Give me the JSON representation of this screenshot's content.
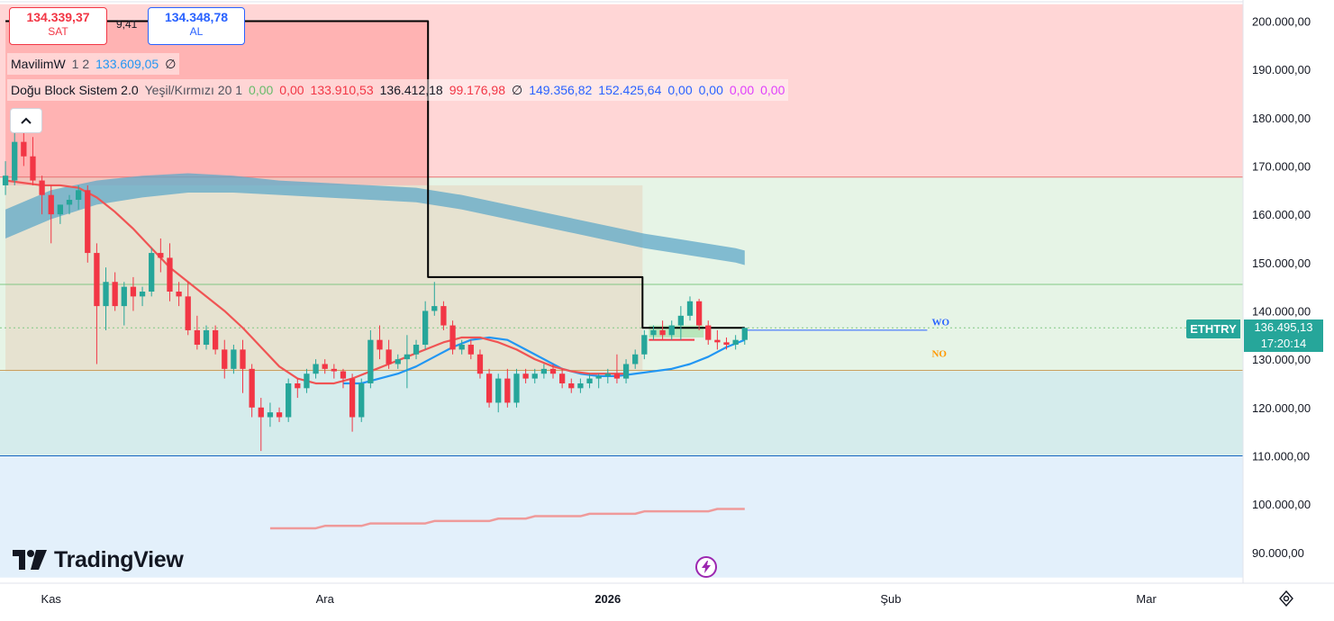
{
  "header": {
    "sell_price": "134.339,37",
    "sell_label": "SAT",
    "spread": "9,41",
    "buy_price": "134.348,78",
    "buy_label": "AL"
  },
  "legend": {
    "row1": {
      "name": "MavilimW",
      "params": "1 2",
      "value": "133.609,05",
      "null_mark": "∅"
    },
    "row2": {
      "name": "Doğu Block Sistem 2.0",
      "params": "Yeşil/Kırmızı 20 1",
      "values": [
        {
          "text": "0,00",
          "color": "#66bb6a"
        },
        {
          "text": "0,00",
          "color": "#f23645"
        },
        {
          "text": "133.910,53",
          "color": "#f23645"
        },
        {
          "text": "136.412,18",
          "color": "#131722"
        },
        {
          "text": "99.176,98",
          "color": "#f23645"
        },
        {
          "text": "∅",
          "color": "#131722"
        },
        {
          "text": "149.356,82",
          "color": "#2962ff"
        },
        {
          "text": "152.425,64",
          "color": "#2962ff"
        },
        {
          "text": "0,00",
          "color": "#2962ff"
        },
        {
          "text": "0,00",
          "color": "#2962ff"
        },
        {
          "text": "0,00",
          "color": "#e040fb"
        },
        {
          "text": "0,00",
          "color": "#e040fb"
        }
      ]
    }
  },
  "branding": {
    "logo_text": "TradingView"
  },
  "symbol": {
    "ticker": "ETHTRY",
    "last_price": "136.495,13",
    "countdown": "17:20:14"
  },
  "colors": {
    "up": "#26a69a",
    "down": "#f23645",
    "red_ma": "#f05454",
    "blue_ma": "#2196f3",
    "cloud": "#5fa8c8",
    "zone_red": "#ffd6d6",
    "zone_green": "#e6f4e6",
    "zone_teal": "#d5ecec",
    "zone_blue": "#e3f0fb"
  },
  "chart_data": {
    "type": "candlestick",
    "title": "",
    "y_axis": {
      "ticks": [
        "200.000,00",
        "190.000,00",
        "180.000,00",
        "170.000,00",
        "160.000,00",
        "150.000,00",
        "140.000,00",
        "130.000,00",
        "120.000,00",
        "110.000,00",
        "100.000,00",
        "90.000,00"
      ],
      "tick_values": [
        200000,
        190000,
        180000,
        170000,
        160000,
        150000,
        140000,
        130000,
        120000,
        110000,
        100000,
        90000
      ],
      "range": [
        84000,
        204000
      ]
    },
    "x_axis": {
      "labels": [
        {
          "text": "Kas",
          "day": 0,
          "bold": false
        },
        {
          "text": "Ara",
          "day": 30,
          "bold": false
        },
        {
          "text": "2026",
          "day": 61,
          "bold": true
        },
        {
          "text": "Şub",
          "day": 92,
          "bold": false
        },
        {
          "text": "Mar",
          "day": 120,
          "bold": false
        }
      ],
      "range_days": [
        -5.6,
        130.6
      ]
    },
    "zones": [
      {
        "name": "red",
        "from": 167700,
        "to": 203500
      },
      {
        "name": "green",
        "from": 127500,
        "to": 167700
      },
      {
        "name": "teal",
        "from": 110000,
        "to": 127500
      },
      {
        "name": "blue",
        "from": 84800,
        "to": 110000
      }
    ],
    "horizontal_lines": [
      {
        "value": 167700,
        "color": "#e57373"
      },
      {
        "value": 145500,
        "color": "#81c784"
      },
      {
        "value": 136500,
        "color": "#81c784",
        "dotted": true
      },
      {
        "value": 127700,
        "color": "#c8a060"
      },
      {
        "value": 110000,
        "color": "#1565c0"
      }
    ],
    "annotations": [
      {
        "text": "WO",
        "day": 96.5,
        "value": 137000,
        "color": "#2962ff"
      },
      {
        "text": "NO",
        "day": 96.5,
        "value": 130500,
        "color": "#ff9800"
      }
    ],
    "candles": [
      {
        "d": -5,
        "o": 166000,
        "h": 171000,
        "l": 164000,
        "c": 168000
      },
      {
        "d": -4,
        "o": 167000,
        "h": 177000,
        "l": 166000,
        "c": 175000
      },
      {
        "d": -3,
        "o": 175000,
        "h": 177000,
        "l": 170000,
        "c": 172000
      },
      {
        "d": -2,
        "o": 172000,
        "h": 176000,
        "l": 166000,
        "c": 167000
      },
      {
        "d": -1,
        "o": 167000,
        "h": 168000,
        "l": 160000,
        "c": 164000
      },
      {
        "d": 0,
        "o": 164000,
        "h": 166000,
        "l": 154000,
        "c": 160000
      },
      {
        "d": 1,
        "o": 160000,
        "h": 162000,
        "l": 158000,
        "c": 162000
      },
      {
        "d": 2,
        "o": 162000,
        "h": 164000,
        "l": 160000,
        "c": 163000
      },
      {
        "d": 3,
        "o": 163000,
        "h": 166000,
        "l": 161000,
        "c": 165000
      },
      {
        "d": 4,
        "o": 165000,
        "h": 166000,
        "l": 150000,
        "c": 152000
      },
      {
        "d": 5,
        "o": 152000,
        "h": 154000,
        "l": 129000,
        "c": 141000
      },
      {
        "d": 6,
        "o": 141000,
        "h": 149000,
        "l": 136000,
        "c": 146000
      },
      {
        "d": 7,
        "o": 146000,
        "h": 148000,
        "l": 140000,
        "c": 141000
      },
      {
        "d": 8,
        "o": 141000,
        "h": 146000,
        "l": 137000,
        "c": 145000
      },
      {
        "d": 9,
        "o": 145000,
        "h": 147000,
        "l": 140000,
        "c": 143000
      },
      {
        "d": 10,
        "o": 143000,
        "h": 145000,
        "l": 141000,
        "c": 144000
      },
      {
        "d": 11,
        "o": 144000,
        "h": 153000,
        "l": 143000,
        "c": 152000
      },
      {
        "d": 12,
        "o": 152000,
        "h": 155000,
        "l": 148000,
        "c": 151000
      },
      {
        "d": 13,
        "o": 151000,
        "h": 154000,
        "l": 142000,
        "c": 144000
      },
      {
        "d": 14,
        "o": 144000,
        "h": 146000,
        "l": 141000,
        "c": 143000
      },
      {
        "d": 15,
        "o": 143000,
        "h": 146000,
        "l": 135000,
        "c": 136000
      },
      {
        "d": 16,
        "o": 136000,
        "h": 139000,
        "l": 132000,
        "c": 133000
      },
      {
        "d": 17,
        "o": 133000,
        "h": 137000,
        "l": 132000,
        "c": 136000
      },
      {
        "d": 18,
        "o": 136000,
        "h": 137000,
        "l": 131000,
        "c": 132000
      },
      {
        "d": 19,
        "o": 132000,
        "h": 134000,
        "l": 126000,
        "c": 128000
      },
      {
        "d": 20,
        "o": 128000,
        "h": 133000,
        "l": 127000,
        "c": 132000
      },
      {
        "d": 21,
        "o": 132000,
        "h": 134000,
        "l": 123000,
        "c": 128000
      },
      {
        "d": 22,
        "o": 128000,
        "h": 129000,
        "l": 118000,
        "c": 120000
      },
      {
        "d": 23,
        "o": 120000,
        "h": 122000,
        "l": 111000,
        "c": 118000
      },
      {
        "d": 24,
        "o": 118000,
        "h": 121000,
        "l": 116000,
        "c": 119000
      },
      {
        "d": 25,
        "o": 119000,
        "h": 120000,
        "l": 117000,
        "c": 118000
      },
      {
        "d": 26,
        "o": 118000,
        "h": 126000,
        "l": 117000,
        "c": 125000
      },
      {
        "d": 27,
        "o": 125000,
        "h": 126000,
        "l": 122000,
        "c": 124000
      },
      {
        "d": 28,
        "o": 124000,
        "h": 128000,
        "l": 123000,
        "c": 127000
      },
      {
        "d": 29,
        "o": 127000,
        "h": 130000,
        "l": 126000,
        "c": 129000
      },
      {
        "d": 30,
        "o": 129000,
        "h": 130000,
        "l": 127000,
        "c": 128000
      },
      {
        "d": 31,
        "o": 128000,
        "h": 129000,
        "l": 126000,
        "c": 127500
      },
      {
        "d": 32,
        "o": 127500,
        "h": 128000,
        "l": 124000,
        "c": 126000
      },
      {
        "d": 33,
        "o": 126000,
        "h": 127000,
        "l": 115000,
        "c": 118000
      },
      {
        "d": 34,
        "o": 118000,
        "h": 126000,
        "l": 117000,
        "c": 125000
      },
      {
        "d": 35,
        "o": 125000,
        "h": 136000,
        "l": 124000,
        "c": 134000
      },
      {
        "d": 36,
        "o": 134000,
        "h": 137000,
        "l": 130000,
        "c": 132000
      },
      {
        "d": 37,
        "o": 132000,
        "h": 134000,
        "l": 128000,
        "c": 129000
      },
      {
        "d": 38,
        "o": 129000,
        "h": 131000,
        "l": 128000,
        "c": 130000
      },
      {
        "d": 39,
        "o": 130000,
        "h": 135000,
        "l": 124000,
        "c": 131000
      },
      {
        "d": 40,
        "o": 131000,
        "h": 134000,
        "l": 130000,
        "c": 133000
      },
      {
        "d": 41,
        "o": 133000,
        "h": 142000,
        "l": 132000,
        "c": 140000
      },
      {
        "d": 42,
        "o": 140000,
        "h": 146000,
        "l": 139000,
        "c": 141000
      },
      {
        "d": 43,
        "o": 141000,
        "h": 142000,
        "l": 136000,
        "c": 137000
      },
      {
        "d": 44,
        "o": 137000,
        "h": 138000,
        "l": 131000,
        "c": 132000
      },
      {
        "d": 45,
        "o": 132000,
        "h": 134000,
        "l": 131000,
        "c": 133000
      },
      {
        "d": 46,
        "o": 133000,
        "h": 134000,
        "l": 130000,
        "c": 131000
      },
      {
        "d": 47,
        "o": 131000,
        "h": 132000,
        "l": 126000,
        "c": 127000
      },
      {
        "d": 48,
        "o": 127000,
        "h": 128000,
        "l": 120000,
        "c": 121000
      },
      {
        "d": 49,
        "o": 121000,
        "h": 127000,
        "l": 119000,
        "c": 126000
      },
      {
        "d": 50,
        "o": 126000,
        "h": 128000,
        "l": 120000,
        "c": 121000
      },
      {
        "d": 51,
        "o": 121000,
        "h": 128000,
        "l": 120000,
        "c": 127000
      },
      {
        "d": 52,
        "o": 127000,
        "h": 128000,
        "l": 125000,
        "c": 126000
      },
      {
        "d": 53,
        "o": 126000,
        "h": 128000,
        "l": 125000,
        "c": 127000
      },
      {
        "d": 54,
        "o": 127000,
        "h": 129000,
        "l": 126000,
        "c": 128000
      },
      {
        "d": 55,
        "o": 128000,
        "h": 129000,
        "l": 126000,
        "c": 127000
      },
      {
        "d": 56,
        "o": 127000,
        "h": 128000,
        "l": 124000,
        "c": 125000
      },
      {
        "d": 57,
        "o": 125000,
        "h": 126000,
        "l": 123000,
        "c": 124000
      },
      {
        "d": 58,
        "o": 124000,
        "h": 126000,
        "l": 123000,
        "c": 125000
      },
      {
        "d": 59,
        "o": 125000,
        "h": 127000,
        "l": 124000,
        "c": 126000
      },
      {
        "d": 60,
        "o": 126000,
        "h": 127000,
        "l": 124000,
        "c": 126500
      },
      {
        "d": 61,
        "o": 126500,
        "h": 128000,
        "l": 125000,
        "c": 127000
      },
      {
        "d": 62,
        "o": 127000,
        "h": 131000,
        "l": 125000,
        "c": 126000
      },
      {
        "d": 63,
        "o": 126000,
        "h": 130000,
        "l": 125000,
        "c": 129000
      },
      {
        "d": 64,
        "o": 129000,
        "h": 132000,
        "l": 128000,
        "c": 131000
      },
      {
        "d": 65,
        "o": 131000,
        "h": 136000,
        "l": 130000,
        "c": 135000
      },
      {
        "d": 66,
        "o": 135000,
        "h": 137000,
        "l": 134000,
        "c": 136000
      },
      {
        "d": 67,
        "o": 136000,
        "h": 138000,
        "l": 134000,
        "c": 135000
      },
      {
        "d": 68,
        "o": 135000,
        "h": 138000,
        "l": 134000,
        "c": 137000
      },
      {
        "d": 69,
        "o": 137000,
        "h": 141000,
        "l": 134000,
        "c": 139000
      },
      {
        "d": 70,
        "o": 139000,
        "h": 143000,
        "l": 138000,
        "c": 142000
      },
      {
        "d": 71,
        "o": 142000,
        "h": 142500,
        "l": 136000,
        "c": 137000
      },
      {
        "d": 72,
        "o": 137000,
        "h": 138000,
        "l": 133000,
        "c": 134000
      },
      {
        "d": 73,
        "o": 134000,
        "h": 136000,
        "l": 132000,
        "c": 133500
      },
      {
        "d": 74,
        "o": 133500,
        "h": 134500,
        "l": 132000,
        "c": 133000
      },
      {
        "d": 75,
        "o": 133000,
        "h": 135000,
        "l": 132000,
        "c": 134000
      },
      {
        "d": 76,
        "o": 134000,
        "h": 136500,
        "l": 133000,
        "c": 136495
      }
    ],
    "series": [
      {
        "name": "MavilimW",
        "color": "#2196f3",
        "x": [
          32,
          34,
          36,
          38,
          40,
          42,
          44,
          46,
          48,
          50,
          52,
          54,
          56,
          58,
          60,
          62,
          64,
          66,
          68,
          70,
          72,
          74,
          76
        ],
        "y": [
          125000,
          125000,
          126000,
          127000,
          128500,
          130500,
          132500,
          134000,
          134500,
          134000,
          132000,
          130000,
          128000,
          127000,
          126500,
          126500,
          127000,
          127500,
          128000,
          129000,
          130500,
          132500,
          134000
        ]
      },
      {
        "name": "",
        "color": "#f05454",
        "x": [
          -5,
          -3,
          -1,
          1,
          3,
          5,
          7,
          9,
          11,
          13,
          15,
          17,
          19,
          21,
          23,
          25,
          27,
          29,
          31,
          33,
          35,
          37,
          39,
          41,
          43,
          45,
          47,
          49,
          51,
          53,
          55,
          57,
          59,
          61,
          63
        ],
        "y": [
          167000,
          166500,
          166000,
          166000,
          165500,
          163500,
          160500,
          157000,
          153000,
          149000,
          146000,
          143000,
          140000,
          136500,
          132500,
          128500,
          126000,
          125000,
          125000,
          126000,
          127500,
          129000,
          130500,
          132000,
          133500,
          134500,
          134500,
          133500,
          132000,
          130000,
          128500,
          127500,
          127000,
          127000,
          127000
        ]
      },
      {
        "name": "",
        "color": "#ef9a9a",
        "x": [
          24,
          29,
          30,
          34,
          35,
          41,
          42,
          48,
          49,
          52,
          53,
          58,
          59,
          64,
          65,
          72,
          73,
          76
        ],
        "y": [
          95000,
          95000,
          95500,
          95500,
          96000,
          96000,
          96500,
          96500,
          97000,
          97000,
          97500,
          97500,
          98000,
          98000,
          98500,
          98500,
          99000,
          99000
        ]
      },
      {
        "name": "",
        "color": "#000000",
        "x": [
          -5,
          41.3,
          41.3,
          64.8,
          64.8,
          76
        ],
        "y": [
          200000,
          200000,
          147000,
          147000,
          136500,
          136500
        ]
      }
    ],
    "cloud": {
      "x": [
        -5,
        0,
        5,
        10,
        15,
        20,
        25,
        30,
        35,
        40,
        45,
        50,
        55,
        60,
        65,
        70,
        75,
        76
      ],
      "upper": [
        161000,
        165000,
        167000,
        168000,
        168500,
        168000,
        167000,
        166500,
        166000,
        165500,
        164000,
        162000,
        160000,
        158000,
        156000,
        154500,
        153000,
        152500
      ],
      "lower": [
        155000,
        159000,
        162000,
        163500,
        164500,
        164500,
        164000,
        163500,
        163000,
        162500,
        161000,
        159000,
        157000,
        155000,
        153000,
        151500,
        150000,
        149500
      ]
    },
    "shaded_regions": [
      {
        "name": "red_box",
        "x": [
          -5,
          41.3
        ],
        "y": [
          166000,
          200000
        ],
        "color": "#ff8a8a"
      },
      {
        "name": "tan_box",
        "x": [
          -5,
          64.8
        ],
        "y": [
          127500,
          166000
        ],
        "color": "#e6d3bd"
      },
      {
        "name": "green_box",
        "x": [
          65.5,
          71.5
        ],
        "y": [
          134500,
          137000
        ],
        "color": "#a5e0a8"
      }
    ]
  }
}
